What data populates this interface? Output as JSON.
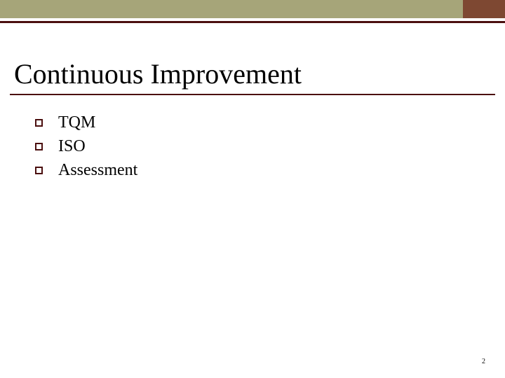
{
  "colors": {
    "top_bar_main": "#a6a579",
    "top_bar_accent": "#7e4832",
    "top_thin": "#ffffff",
    "top_line": "#4b0f0f",
    "title_underline": "#4b0f0f",
    "bullet_border": "#4b0f0f"
  },
  "title": "Continuous Improvement",
  "bullets": [
    {
      "label": "TQM"
    },
    {
      "label": "ISO"
    },
    {
      "label": "Assessment"
    }
  ],
  "page_number": "2"
}
